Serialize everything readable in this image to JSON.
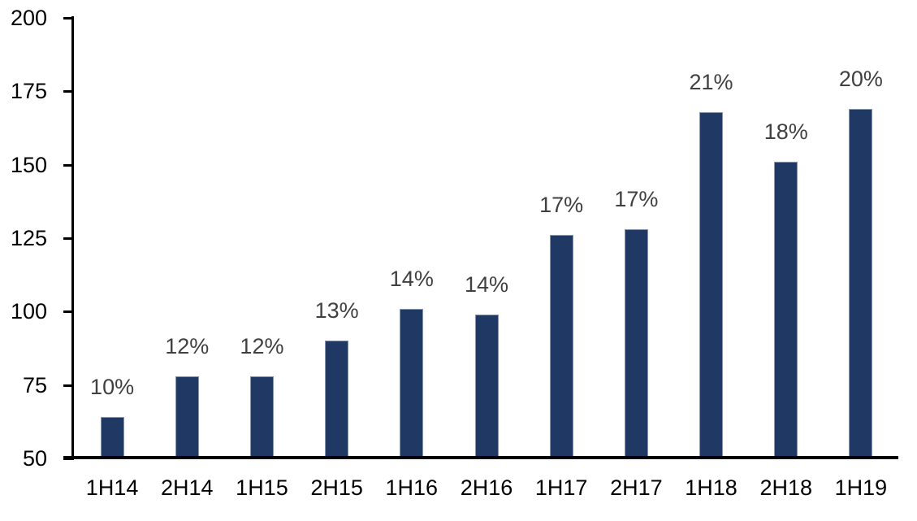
{
  "chart_data": {
    "type": "bar",
    "title": "",
    "xlabel": "",
    "ylabel": "",
    "categories": [
      "1H14",
      "2H14",
      "1H15",
      "2H15",
      "1H16",
      "2H16",
      "1H17",
      "2H17",
      "1H18",
      "2H18",
      "1H19"
    ],
    "values": [
      64,
      78,
      78,
      90,
      101,
      99,
      126,
      128,
      168,
      151,
      169
    ],
    "bar_labels": [
      "10%",
      "12%",
      "12%",
      "13%",
      "14%",
      "14%",
      "17%",
      "17%",
      "21%",
      "18%",
      "20%"
    ],
    "ylim": [
      50,
      200
    ],
    "yticks": [
      50,
      75,
      100,
      125,
      150,
      175,
      200
    ],
    "grid": false,
    "legend": false,
    "colors": {
      "bar_fill": "#1F3864",
      "bar_border": "#8496B0",
      "data_label": "#404040",
      "axis": "#000000",
      "background": "#FFFFFF"
    }
  }
}
